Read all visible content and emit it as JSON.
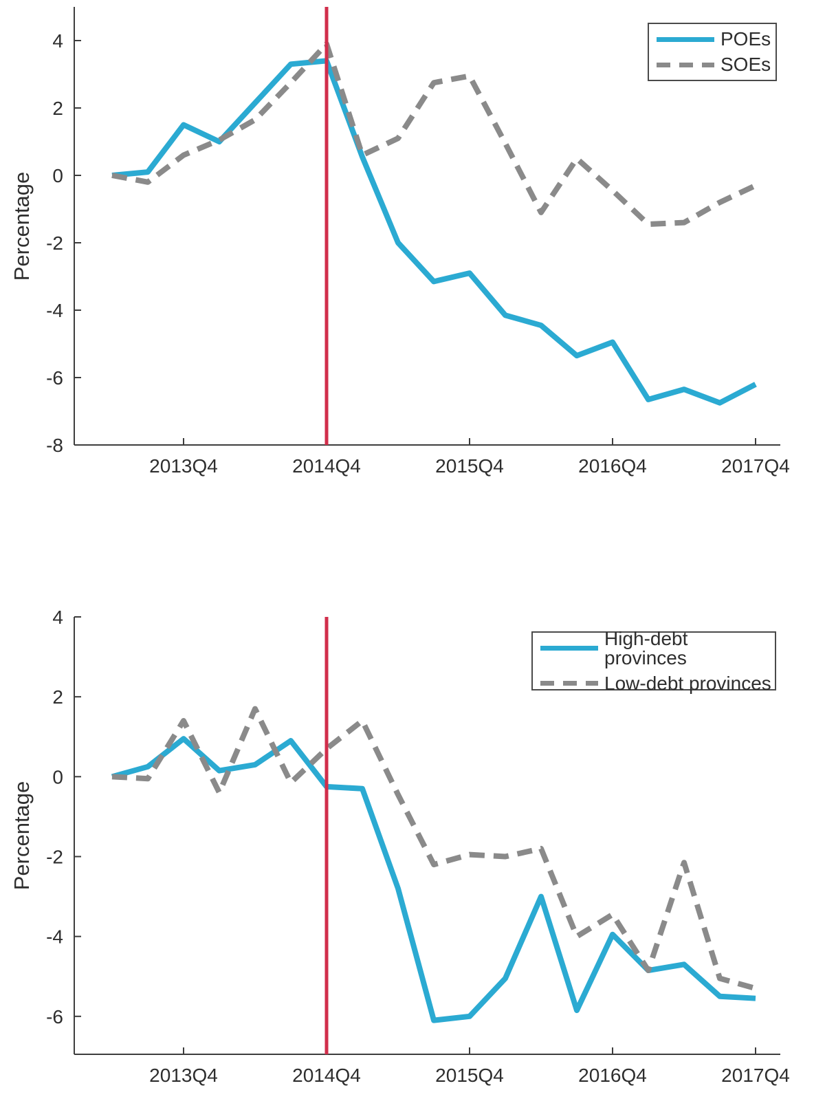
{
  "page": {
    "background": "#ffffff"
  },
  "colors": {
    "series1": "#2BAAD2",
    "series2": "#8A8A8A",
    "event": "#D12E4B",
    "axis": "#3D3D3D",
    "text": "#2E2E2E"
  },
  "chart_data": [
    {
      "type": "line",
      "title": "",
      "xlabel": "",
      "ylabel": "Percentage",
      "grid": false,
      "x": [
        "2013Q2",
        "2013Q3",
        "2013Q4",
        "2014Q1",
        "2014Q2",
        "2014Q3",
        "2014Q4",
        "2015Q1",
        "2015Q2",
        "2015Q3",
        "2015Q4",
        "2016Q1",
        "2016Q2",
        "2016Q3",
        "2016Q4",
        "2017Q1",
        "2017Q2",
        "2017Q3",
        "2017Q4"
      ],
      "series": [
        {
          "name": "POEs",
          "style": "solid",
          "color_key": "series1",
          "values": [
            0,
            0.1,
            1.5,
            1.0,
            2.15,
            3.3,
            3.4,
            0.55,
            -2.0,
            -3.15,
            -2.9,
            -4.15,
            -4.45,
            -5.35,
            -4.95,
            -6.65,
            -6.35,
            -6.75,
            -6.2
          ]
        },
        {
          "name": "SOEs",
          "style": "dashed",
          "color_key": "series2",
          "values": [
            0,
            -0.2,
            0.6,
            1.05,
            1.65,
            2.75,
            3.9,
            0.6,
            1.1,
            2.75,
            2.95,
            0.95,
            -1.1,
            0.5,
            -0.45,
            -1.45,
            -1.4,
            -0.8,
            -0.3
          ]
        }
      ],
      "ylim": [
        -8,
        5
      ],
      "yticks": [
        4,
        2,
        0,
        -2,
        -4,
        -6,
        -8
      ],
      "xtick_labels": [
        "2013Q4",
        "2014Q4",
        "2015Q4",
        "2016Q4",
        "2017Q4"
      ],
      "xtick_indices": [
        2,
        6,
        10,
        14,
        18
      ],
      "event_line": {
        "x": "2014Q4",
        "x_index": 6,
        "color_key": "event"
      },
      "legend": {
        "position": "top-right",
        "entries": [
          "POEs",
          "SOEs"
        ]
      }
    },
    {
      "type": "line",
      "title": "",
      "xlabel": "",
      "ylabel": "Percentage",
      "grid": false,
      "x": [
        "2013Q2",
        "2013Q3",
        "2013Q4",
        "2014Q1",
        "2014Q2",
        "2014Q3",
        "2014Q4",
        "2015Q1",
        "2015Q2",
        "2015Q3",
        "2015Q4",
        "2016Q1",
        "2016Q2",
        "2016Q3",
        "2016Q4",
        "2017Q1",
        "2017Q2",
        "2017Q3",
        "2017Q4"
      ],
      "series": [
        {
          "name": "High-debt provinces",
          "style": "solid",
          "color_key": "series1",
          "values": [
            0,
            0.25,
            0.95,
            0.15,
            0.3,
            0.9,
            -0.25,
            -0.3,
            -2.8,
            -6.1,
            -6.0,
            -5.05,
            -3.0,
            -5.85,
            -3.95,
            -4.85,
            -4.7,
            -5.5,
            -5.55
          ]
        },
        {
          "name": "Low-debt provinces",
          "style": "dashed",
          "color_key": "series2",
          "values": [
            0,
            -0.05,
            1.4,
            -0.4,
            1.7,
            -0.15,
            0.7,
            1.4,
            -0.45,
            -2.2,
            -1.95,
            -2.0,
            -1.8,
            -4.0,
            -3.45,
            -4.85,
            -2.15,
            -5.05,
            -5.3
          ]
        }
      ],
      "ylim": [
        -6.95,
        4
      ],
      "yticks": [
        4,
        2,
        0,
        -2,
        -4,
        -6
      ],
      "xtick_labels": [
        "2013Q4",
        "2014Q4",
        "2015Q4",
        "2016Q4",
        "2017Q4"
      ],
      "xtick_indices": [
        2,
        6,
        10,
        14,
        18
      ],
      "event_line": {
        "x": "2014Q4",
        "x_index": 6,
        "color_key": "event"
      },
      "legend": {
        "position": "top-right",
        "entries": [
          "High-debt provinces",
          "Low-debt provinces"
        ]
      }
    }
  ]
}
